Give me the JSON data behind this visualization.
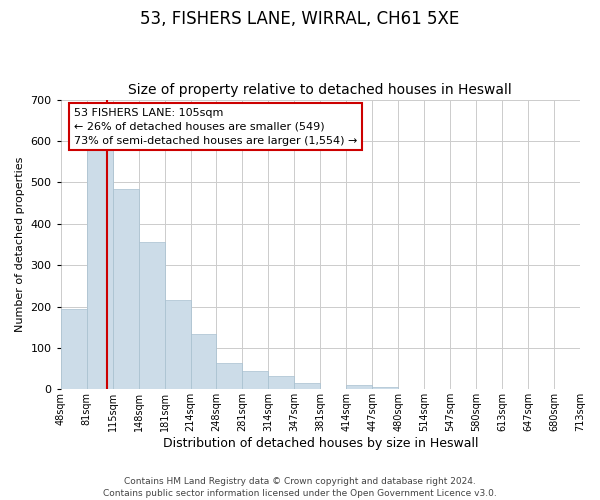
{
  "title": "53, FISHERS LANE, WIRRAL, CH61 5XE",
  "subtitle": "Size of property relative to detached houses in Heswall",
  "xlabel": "Distribution of detached houses by size in Heswall",
  "ylabel": "Number of detached properties",
  "bar_labels": [
    "48sqm",
    "81sqm",
    "115sqm",
    "148sqm",
    "181sqm",
    "214sqm",
    "248sqm",
    "281sqm",
    "314sqm",
    "347sqm",
    "381sqm",
    "414sqm",
    "447sqm",
    "480sqm",
    "514sqm",
    "547sqm",
    "580sqm",
    "613sqm",
    "647sqm",
    "680sqm",
    "713sqm"
  ],
  "bar_heights": [
    193,
    578,
    483,
    355,
    215,
    133,
    63,
    43,
    33,
    15,
    0,
    10,
    5,
    0,
    0,
    0,
    0,
    0,
    0,
    0
  ],
  "bar_color": "#ccdce8",
  "bar_edge_color": "#a8c0d0",
  "property_line_index": 1.8,
  "property_line_color": "#cc0000",
  "annotation_text": "53 FISHERS LANE: 105sqm\n← 26% of detached houses are smaller (549)\n73% of semi-detached houses are larger (1,554) →",
  "annotation_box_color": "#ffffff",
  "annotation_box_edge_color": "#cc0000",
  "ylim": [
    0,
    700
  ],
  "yticks": [
    0,
    100,
    200,
    300,
    400,
    500,
    600,
    700
  ],
  "background_color": "#ffffff",
  "grid_color": "#cccccc",
  "footnote": "Contains HM Land Registry data © Crown copyright and database right 2024.\nContains public sector information licensed under the Open Government Licence v3.0.",
  "title_fontsize": 12,
  "subtitle_fontsize": 10,
  "xlabel_fontsize": 9,
  "ylabel_fontsize": 8,
  "tick_fontsize": 7,
  "footnote_fontsize": 6.5
}
